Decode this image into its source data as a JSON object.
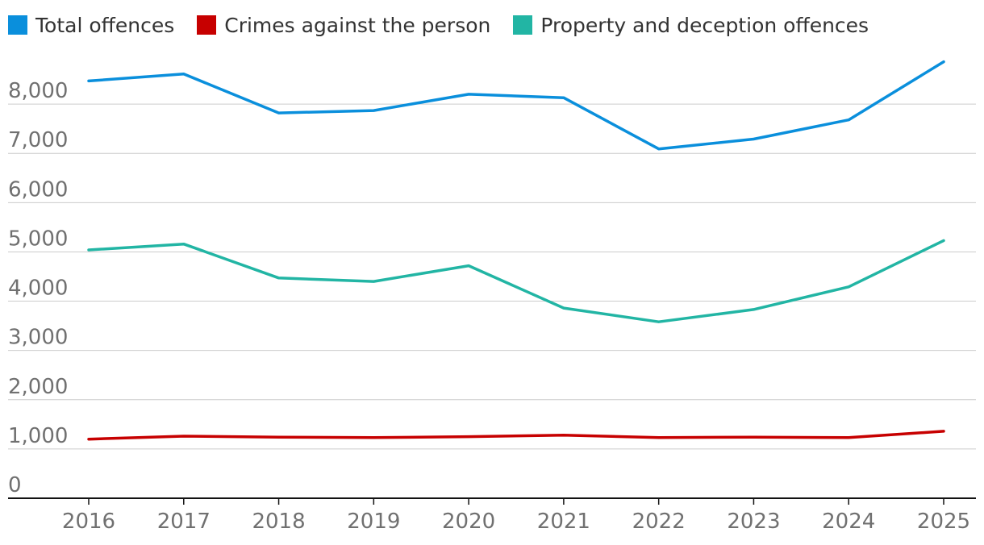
{
  "chart_data": {
    "type": "line",
    "x": [
      "2016",
      "2017",
      "2018",
      "2019",
      "2020",
      "2021",
      "2022",
      "2023",
      "2024",
      "2025"
    ],
    "y_ticks": [
      "0",
      "1,000",
      "2,000",
      "3,000",
      "4,000",
      "5,000",
      "6,000",
      "7,000",
      "8,000"
    ],
    "ylim": [
      0,
      9000
    ],
    "grid": true,
    "legend_position": "top-left",
    "series": [
      {
        "name": "Total offences",
        "color": "#0a8fdc",
        "values": [
          8470,
          8610,
          7820,
          7870,
          8200,
          8130,
          7090,
          7290,
          7680,
          8860
        ]
      },
      {
        "name": "Crimes against the person",
        "color": "#c70000",
        "values": [
          1200,
          1260,
          1240,
          1230,
          1250,
          1280,
          1230,
          1240,
          1230,
          1360
        ]
      },
      {
        "name": "Property and deception offences",
        "color": "#22b5a4",
        "values": [
          5040,
          5160,
          4470,
          4400,
          4720,
          3860,
          3580,
          3830,
          4290,
          5230
        ]
      }
    ]
  }
}
